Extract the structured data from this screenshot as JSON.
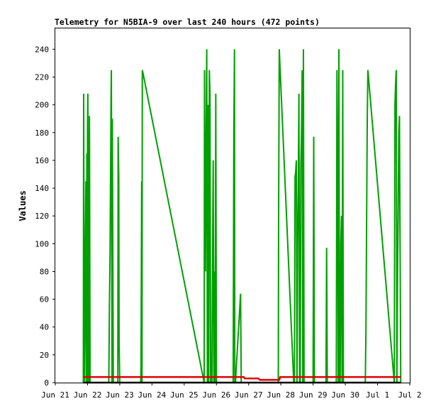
{
  "chart_data": {
    "type": "line",
    "title": "Telemetry for N5BIA-9 over last 240 hours (472 points)",
    "xlabel": "",
    "ylabel": "Values",
    "ylim": [
      0,
      255
    ],
    "xlim": [
      0,
      11
    ],
    "yticks": [
      0,
      20,
      40,
      60,
      80,
      100,
      120,
      140,
      160,
      180,
      200,
      220,
      240
    ],
    "xticks": [
      {
        "x": 0,
        "label": "Jun 21"
      },
      {
        "x": 1,
        "label": "Jun 22"
      },
      {
        "x": 2,
        "label": "Jun 23"
      },
      {
        "x": 3,
        "label": "Jun 24"
      },
      {
        "x": 4,
        "label": "Jun 25"
      },
      {
        "x": 5,
        "label": "Jun 26"
      },
      {
        "x": 6,
        "label": "Jun 27"
      },
      {
        "x": 7,
        "label": "Jun 28"
      },
      {
        "x": 8,
        "label": "Jun 29"
      },
      {
        "x": 9,
        "label": "Jun 30"
      },
      {
        "x": 10,
        "label": "Jul 1"
      },
      {
        "x": 11,
        "label": "Jul 2"
      }
    ],
    "grid": false,
    "colors": {
      "green_series": "#00a000",
      "red_series": "#dd0000",
      "black_series": "#000000"
    },
    "series": [
      {
        "color": "#00a000",
        "x": [
          0.87,
          0.88,
          0.9,
          0.92,
          0.93,
          0.95,
          0.96,
          0.98,
          1.0,
          1.0,
          1.01,
          1.03,
          1.05,
          1.06,
          1.08,
          1.1,
          1.66,
          1.68,
          1.7,
          1.72,
          1.73,
          1.74,
          1.76,
          1.77,
          1.8,
          1.82,
          1.94,
          1.95,
          1.97,
          1.98,
          2.0,
          2.65,
          2.66,
          2.68,
          2.69,
          2.7,
          2.72,
          4.62,
          4.63,
          4.64,
          4.66,
          4.68,
          4.7,
          4.72,
          4.74,
          4.76,
          4.78,
          4.8,
          4.82,
          4.84,
          4.86,
          4.88,
          4.9,
          4.92,
          4.94,
          4.96,
          4.98,
          5.0,
          5.02,
          5.52,
          5.54,
          5.56,
          5.57,
          5.59,
          5.75,
          5.77,
          5.79,
          6.65,
          6.8,
          6.9,
          6.92,
          6.93,
          6.95,
          7.4,
          7.42,
          7.44,
          7.46,
          7.48,
          7.5,
          7.52,
          7.54,
          7.56,
          7.58,
          7.6,
          7.62,
          7.64,
          7.66,
          7.68,
          7.7,
          7.72,
          7.74,
          7.76,
          7.78,
          8.0,
          8.02,
          8.04,
          8.4,
          8.42,
          8.44,
          8.72,
          8.74,
          8.76,
          8.78,
          8.8,
          8.82,
          8.84,
          8.86,
          8.88,
          8.9,
          8.92,
          8.94,
          8.96,
          8.98,
          9.6,
          9.62,
          9.64,
          9.66,
          9.68,
          9.7,
          10.52,
          10.54,
          10.56,
          10.58,
          10.6,
          10.62,
          10.64,
          10.66,
          10.68,
          10.7,
          10.72
        ],
        "y": [
          0,
          208,
          0,
          50,
          90,
          145,
          0,
          165,
          0,
          182,
          208,
          0,
          0,
          192,
          0,
          0,
          0,
          55,
          95,
          168,
          205,
          225,
          0,
          190,
          0,
          0,
          0,
          177,
          148,
          30,
          0,
          0,
          12,
          145,
          0,
          225,
          223,
          0,
          225,
          150,
          80,
          180,
          240,
          0,
          200,
          0,
          225,
          208,
          0,
          1,
          0,
          90,
          160,
          0,
          80,
          0,
          208,
          0,
          0,
          0,
          180,
          240,
          0,
          0,
          64,
          0,
          0,
          0,
          0,
          0,
          0,
          120,
          240,
          0,
          0,
          148,
          152,
          160,
          0,
          100,
          140,
          208,
          0,
          0,
          155,
          180,
          225,
          0,
          240,
          0,
          0,
          0,
          0,
          0,
          177,
          0,
          0,
          97,
          0,
          0,
          225,
          150,
          0,
          240,
          0,
          0,
          100,
          120,
          0,
          225,
          0,
          0,
          0,
          0,
          0,
          38,
          112,
          188,
          225,
          0,
          200,
          215,
          225,
          0,
          78,
          120,
          180,
          192,
          97,
          0
        ]
      },
      {
        "color": "#dd0000",
        "x": [
          0.87,
          1.5,
          2.5,
          3.5,
          4.5,
          5.5,
          5.85,
          5.88,
          6.3,
          6.35,
          6.95,
          6.98,
          7.5,
          8.5,
          9.5,
          10.5,
          10.72
        ],
        "y": [
          4,
          4,
          4,
          4,
          4,
          4,
          4,
          3,
          3,
          2,
          2,
          4,
          4,
          4,
          4,
          4,
          4
        ]
      },
      {
        "color": "#000000",
        "x": [
          0.87,
          10.72
        ],
        "y": [
          0,
          0
        ]
      }
    ]
  }
}
